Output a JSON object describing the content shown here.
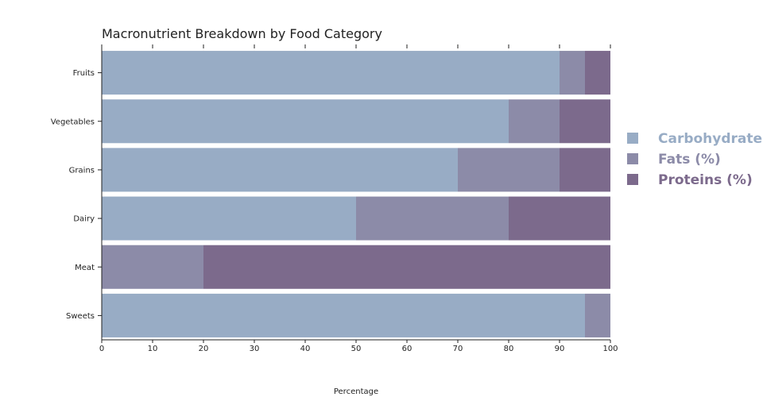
{
  "chart_data": {
    "type": "bar",
    "orientation": "horizontal",
    "stacked": true,
    "title": "Macronutrient Breakdown by Food Category",
    "xlabel": "Percentage",
    "ylabel": "",
    "xlim": [
      0,
      100
    ],
    "x_ticks": [
      0,
      10,
      20,
      30,
      40,
      50,
      60,
      70,
      80,
      90,
      100
    ],
    "categories": [
      "Fruits",
      "Vegetables",
      "Grains",
      "Dairy",
      "Meat",
      "Sweets"
    ],
    "series": [
      {
        "name": "Carbohydrates",
        "color": "#98acc5",
        "values": [
          90,
          80,
          70,
          50,
          0,
          95
        ]
      },
      {
        "name": "Fats (%)",
        "color": "#8c8ba8",
        "values": [
          5,
          10,
          20,
          30,
          20,
          5
        ]
      },
      {
        "name": "Proteins (%)",
        "color": "#7c6a8c",
        "values": [
          5,
          10,
          10,
          20,
          80,
          0
        ]
      }
    ],
    "grid": false,
    "legend": "right"
  }
}
